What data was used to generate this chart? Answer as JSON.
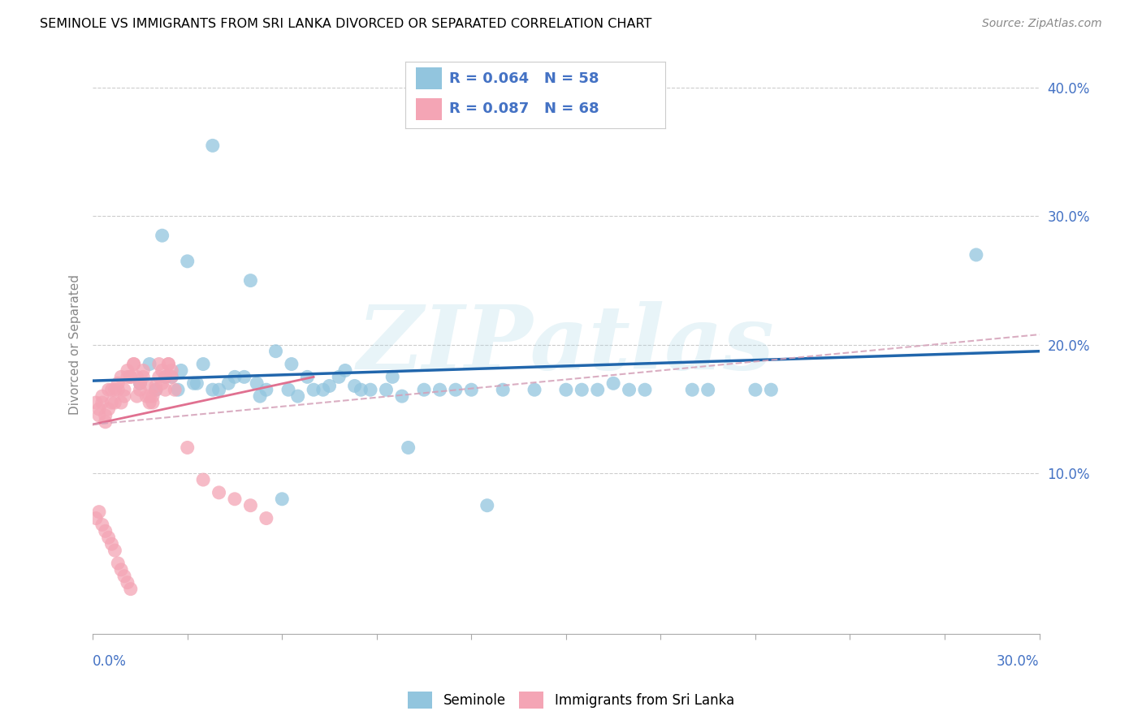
{
  "title": "SEMINOLE VS IMMIGRANTS FROM SRI LANKA DIVORCED OR SEPARATED CORRELATION CHART",
  "source": "Source: ZipAtlas.com",
  "ylabel": "Divorced or Separated",
  "xlim": [
    0.0,
    0.3
  ],
  "ylim": [
    -0.025,
    0.425
  ],
  "ytick_vals": [
    0.1,
    0.2,
    0.3,
    0.4
  ],
  "blue_color": "#92c5de",
  "pink_color": "#f4a5b5",
  "trend_blue_color": "#2166ac",
  "trend_pink_solid_color": "#e07090",
  "trend_pink_dash_color": "#d4a0b8",
  "watermark": "ZIPatlas",
  "R_blue": 0.064,
  "N_blue": 58,
  "R_pink": 0.087,
  "N_pink": 68,
  "seminole_x": [
    0.038,
    0.022,
    0.03,
    0.05,
    0.035,
    0.045,
    0.055,
    0.065,
    0.08,
    0.025,
    0.028,
    0.032,
    0.04,
    0.052,
    0.062,
    0.075,
    0.085,
    0.095,
    0.105,
    0.015,
    0.018,
    0.023,
    0.027,
    0.033,
    0.038,
    0.043,
    0.048,
    0.053,
    0.058,
    0.063,
    0.068,
    0.073,
    0.078,
    0.083,
    0.088,
    0.093,
    0.098,
    0.28,
    0.125,
    0.15,
    0.17,
    0.19,
    0.21,
    0.02,
    0.07,
    0.11,
    0.13,
    0.14,
    0.16,
    0.1,
    0.115,
    0.155,
    0.175,
    0.195,
    0.215,
    0.12,
    0.165,
    0.06
  ],
  "seminole_y": [
    0.355,
    0.285,
    0.265,
    0.25,
    0.185,
    0.175,
    0.165,
    0.16,
    0.18,
    0.175,
    0.18,
    0.17,
    0.165,
    0.17,
    0.165,
    0.168,
    0.165,
    0.175,
    0.165,
    0.17,
    0.185,
    0.175,
    0.165,
    0.17,
    0.165,
    0.17,
    0.175,
    0.16,
    0.195,
    0.185,
    0.175,
    0.165,
    0.175,
    0.168,
    0.165,
    0.165,
    0.16,
    0.27,
    0.075,
    0.165,
    0.165,
    0.165,
    0.165,
    0.165,
    0.165,
    0.165,
    0.165,
    0.165,
    0.165,
    0.12,
    0.165,
    0.165,
    0.165,
    0.165,
    0.165,
    0.165,
    0.17,
    0.08
  ],
  "sri_lanka_x": [
    0.001,
    0.002,
    0.002,
    0.003,
    0.003,
    0.004,
    0.004,
    0.005,
    0.005,
    0.006,
    0.006,
    0.007,
    0.007,
    0.008,
    0.008,
    0.009,
    0.009,
    0.01,
    0.01,
    0.011,
    0.011,
    0.012,
    0.012,
    0.013,
    0.013,
    0.014,
    0.014,
    0.015,
    0.015,
    0.016,
    0.016,
    0.017,
    0.017,
    0.018,
    0.018,
    0.019,
    0.019,
    0.02,
    0.02,
    0.021,
    0.021,
    0.022,
    0.022,
    0.023,
    0.023,
    0.024,
    0.024,
    0.025,
    0.025,
    0.026,
    0.03,
    0.035,
    0.04,
    0.045,
    0.05,
    0.055,
    0.001,
    0.002,
    0.003,
    0.004,
    0.005,
    0.006,
    0.007,
    0.008,
    0.009,
    0.01,
    0.011,
    0.012
  ],
  "sri_lanka_y": [
    0.155,
    0.15,
    0.145,
    0.16,
    0.155,
    0.14,
    0.145,
    0.165,
    0.15,
    0.155,
    0.165,
    0.155,
    0.165,
    0.17,
    0.165,
    0.175,
    0.155,
    0.16,
    0.165,
    0.175,
    0.18,
    0.175,
    0.175,
    0.185,
    0.185,
    0.16,
    0.175,
    0.165,
    0.17,
    0.175,
    0.18,
    0.16,
    0.17,
    0.155,
    0.16,
    0.155,
    0.16,
    0.165,
    0.168,
    0.175,
    0.185,
    0.18,
    0.17,
    0.175,
    0.165,
    0.185,
    0.185,
    0.175,
    0.18,
    0.165,
    0.12,
    0.095,
    0.085,
    0.08,
    0.075,
    0.065,
    0.065,
    0.07,
    0.06,
    0.055,
    0.05,
    0.045,
    0.04,
    0.03,
    0.025,
    0.02,
    0.015,
    0.01
  ]
}
